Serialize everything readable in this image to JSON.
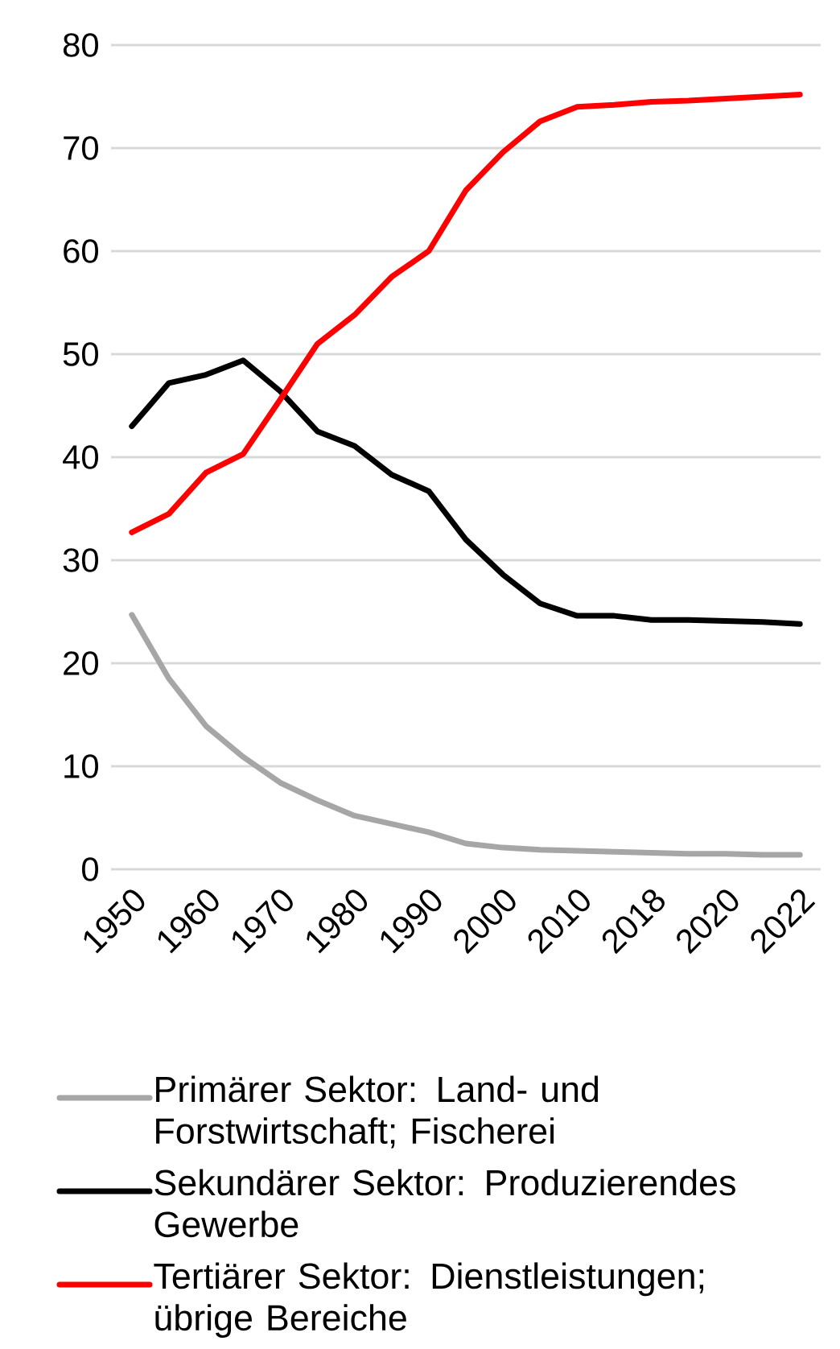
{
  "chart_data": {
    "type": "line",
    "categories": [
      "1950",
      null,
      "1960",
      null,
      "1970",
      null,
      "1980",
      null,
      "1990",
      null,
      "2000",
      null,
      "2010",
      null,
      "2018",
      null,
      "2020",
      null,
      "2022"
    ],
    "series": [
      {
        "name": "Primärer Sektor: Land- und Forstwirtschaft; Fischerei",
        "color": "#a6a6a6",
        "values": [
          24.7,
          18.5,
          13.9,
          10.9,
          8.4,
          6.7,
          5.2,
          4.4,
          3.6,
          2.5,
          2.1,
          1.9,
          1.8,
          1.7,
          1.6,
          1.5,
          1.5,
          1.4,
          1.4
        ]
      },
      {
        "name": "Sekundärer Sektor: Produzierendes Gewerbe",
        "color": "#000000",
        "values": [
          43.0,
          47.2,
          48.0,
          49.4,
          46.4,
          42.5,
          41.1,
          38.3,
          36.7,
          32.0,
          28.6,
          25.8,
          24.6,
          24.6,
          24.2,
          24.2,
          24.1,
          24.0,
          23.8
        ]
      },
      {
        "name": "Tertiärer Sektor: Dienstleistungen; übrige Bereiche",
        "color": "#ff0000",
        "values": [
          32.7,
          34.5,
          38.5,
          40.3,
          45.6,
          51.0,
          53.8,
          57.5,
          60.0,
          65.9,
          69.6,
          72.6,
          74.0,
          74.2,
          74.5,
          74.6,
          74.8,
          75.0,
          75.2
        ]
      }
    ],
    "ylim": [
      0,
      80
    ],
    "yticks": [
      0,
      10,
      20,
      30,
      40,
      50,
      60,
      70,
      80
    ],
    "grid": "y",
    "legend": "bottom"
  }
}
